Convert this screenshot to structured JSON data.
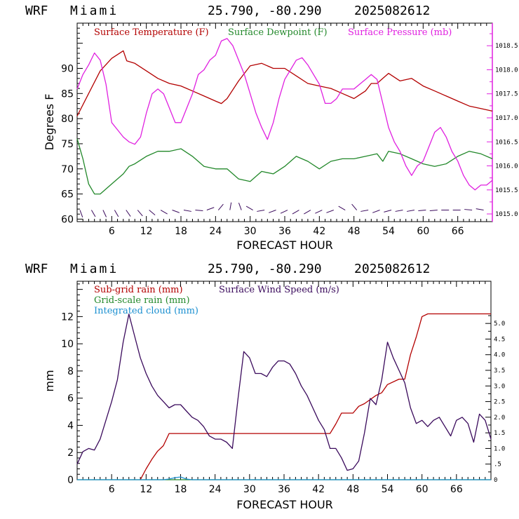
{
  "chart_data": [
    {
      "type": "line",
      "header": {
        "model": "WRF",
        "location": "Miami",
        "coords": "25.790, -80.290",
        "run": "2025082612"
      },
      "xlabel": "FORECAST HOUR",
      "ylabel": "Degrees F",
      "xlim": [
        0,
        72
      ],
      "ylim": [
        59.5,
        99
      ],
      "xticks": [
        6,
        12,
        18,
        24,
        30,
        36,
        42,
        48,
        54,
        60,
        66
      ],
      "yticks": [
        60,
        65,
        70,
        75,
        80,
        85,
        90
      ],
      "right_axis": {
        "ylim": [
          1014.84,
          1018.97
        ],
        "ticks": [
          "1015.0",
          "1015.5",
          "1016.0",
          "1016.5",
          "1017.0",
          "1017.5",
          "1018.0",
          "1018.5"
        ]
      },
      "series": [
        {
          "name": "Surface Temperature (F)",
          "color": "#b30000",
          "axis": "left",
          "x": [
            0,
            2,
            4,
            6,
            8,
            8.6,
            10,
            12,
            14,
            16,
            18,
            20,
            22,
            24,
            25,
            26,
            28,
            30,
            32,
            34,
            36,
            38,
            40,
            42,
            44,
            46,
            48,
            50,
            51,
            52,
            53,
            54,
            56,
            58,
            60,
            62,
            64,
            66,
            68,
            70,
            72
          ],
          "y": [
            80.5,
            85,
            89.5,
            92,
            93.5,
            91.5,
            91,
            89.5,
            88,
            87,
            86.5,
            85.5,
            84.5,
            83.5,
            83,
            84,
            87.5,
            90.5,
            91,
            90,
            90,
            88.5,
            87,
            86.5,
            86,
            85,
            84,
            85.5,
            87,
            87,
            88,
            89,
            87.5,
            88,
            86.5,
            85.5,
            84.5,
            83.5,
            82.5,
            82,
            81.5
          ]
        },
        {
          "name": "Surface Dewpoint (F)",
          "color": "#22882a",
          "axis": "left",
          "x": [
            0,
            1,
            2,
            3,
            4,
            6,
            8,
            9,
            10,
            12,
            14,
            16,
            18,
            20,
            22,
            24,
            26,
            28,
            30,
            32,
            34,
            36,
            38,
            40,
            42,
            44,
            46,
            48,
            50,
            52,
            53,
            54,
            56,
            58,
            60,
            62,
            64,
            66,
            68,
            70,
            72
          ],
          "y": [
            76,
            72,
            67,
            65,
            65,
            67,
            69,
            70.5,
            71,
            72.5,
            73.5,
            73.5,
            74,
            72.5,
            70.5,
            70,
            70,
            68,
            67.5,
            69.5,
            69,
            70.5,
            72.5,
            71.5,
            70,
            71.5,
            72,
            72,
            72.5,
            73,
            71.5,
            73.5,
            73,
            72,
            71,
            70.5,
            71,
            72.5,
            73.5,
            73,
            72
          ]
        },
        {
          "name": "Surface Pressure (mb)",
          "color": "#e020e0",
          "axis": "right",
          "x": [
            0,
            1,
            2,
            3,
            4,
            5,
            6,
            7,
            8,
            9,
            10,
            11,
            12,
            13,
            14,
            15,
            16,
            17,
            18,
            19,
            20,
            21,
            22,
            23,
            24,
            25,
            26,
            27,
            28,
            29,
            30,
            31,
            32,
            33,
            34,
            35,
            36,
            37,
            38,
            39,
            40,
            41,
            42,
            43,
            44,
            45,
            46,
            47,
            48,
            49,
            50,
            51,
            52,
            53,
            54,
            55,
            56,
            57,
            58,
            59,
            60,
            61,
            62,
            63,
            64,
            65,
            66,
            67,
            68,
            69,
            70,
            71,
            72
          ],
          "y": [
            1017.6,
            1017.9,
            1018.1,
            1018.35,
            1018.2,
            1017.7,
            1016.9,
            1016.75,
            1016.6,
            1016.5,
            1016.45,
            1016.6,
            1017.1,
            1017.5,
            1017.6,
            1017.5,
            1017.2,
            1016.9,
            1016.9,
            1017.2,
            1017.5,
            1017.9,
            1018.0,
            1018.2,
            1018.3,
            1018.6,
            1018.65,
            1018.5,
            1018.2,
            1017.9,
            1017.5,
            1017.1,
            1016.8,
            1016.55,
            1016.9,
            1017.4,
            1017.8,
            1018.0,
            1018.2,
            1018.25,
            1018.1,
            1017.9,
            1017.7,
            1017.3,
            1017.3,
            1017.4,
            1017.6,
            1017.6,
            1017.6,
            1017.7,
            1017.8,
            1017.9,
            1017.8,
            1017.3,
            1016.8,
            1016.5,
            1016.3,
            1016.0,
            1015.8,
            1016.0,
            1016.1,
            1016.4,
            1016.7,
            1016.8,
            1016.6,
            1016.3,
            1016.1,
            1015.8,
            1015.6,
            1015.5,
            1015.6,
            1015.6,
            1015.7
          ]
        }
      ],
      "wind_barbs": {
        "hours": [
          0,
          2,
          4,
          6,
          8,
          10,
          12,
          14,
          16,
          18,
          20,
          22,
          24,
          26,
          28,
          30,
          32,
          34,
          36,
          38,
          40,
          42,
          44,
          46,
          48,
          50,
          52,
          54,
          56,
          58,
          60,
          62,
          64,
          66,
          68,
          70
        ],
        "angles": [
          160,
          150,
          155,
          150,
          145,
          140,
          130,
          120,
          110,
          100,
          95,
          70,
          40,
          10,
          -20,
          -60,
          -100,
          -110,
          -115,
          -120,
          -120,
          -115,
          -110,
          -60,
          -40,
          -100,
          -110,
          -105,
          -100,
          -100,
          -95,
          -95,
          -90,
          -90,
          -85,
          -80
        ]
      }
    },
    {
      "type": "line",
      "header": {
        "model": "WRF",
        "location": "Miami",
        "coords": "25.790, -80.290",
        "run": "2025082612"
      },
      "xlabel": "FORECAST HOUR",
      "ylabel": "mm",
      "xlim": [
        0,
        72
      ],
      "ylim": [
        0,
        14.6
      ],
      "xticks": [
        6,
        12,
        18,
        24,
        30,
        36,
        42,
        48,
        54,
        60,
        66
      ],
      "yticks": [
        0,
        2,
        4,
        6,
        8,
        10,
        12
      ],
      "right_axis": {
        "ylim": [
          0,
          6.35
        ],
        "ticks": [
          "0",
          ".5",
          "1.0",
          "1.5",
          "2.0",
          "2.5",
          "3.0",
          "3.5",
          "4.0",
          "4.5",
          "5.0"
        ]
      },
      "series": [
        {
          "name": "Sub-grid rain (mm)",
          "color": "#b30000",
          "axis": "left",
          "x": [
            11,
            12,
            13,
            14,
            15,
            16,
            44,
            45,
            46,
            47,
            48,
            49,
            50,
            51,
            52,
            53,
            54,
            56,
            57,
            58,
            59,
            60,
            61,
            62,
            72
          ],
          "y": [
            0,
            0.8,
            1.5,
            2.1,
            2.5,
            3.4,
            3.4,
            4.1,
            4.9,
            4.9,
            4.9,
            5.4,
            5.6,
            5.9,
            6.2,
            6.4,
            7.0,
            7.4,
            7.4,
            9.2,
            10.5,
            12.0,
            12.2,
            12.2,
            12.2
          ]
        },
        {
          "name": "Grid-scale rain (mm)",
          "color": "#22882a",
          "axis": "left",
          "x": [
            0,
            72
          ],
          "y": [
            0,
            0
          ]
        },
        {
          "name": "Integrated cloud (mm)",
          "color": "#1a8fd0",
          "axis": "left",
          "x": [
            0,
            15,
            16,
            17,
            18,
            19,
            20,
            72
          ],
          "y": [
            0,
            0,
            0.05,
            0.15,
            0.2,
            0.05,
            0,
            0
          ]
        },
        {
          "name": "Surface Wind Speed (m/s)",
          "color": "#3a0a5c",
          "axis": "right",
          "x": [
            0,
            1,
            2,
            3,
            4,
            5,
            6,
            7,
            8,
            9,
            10,
            11,
            12,
            13,
            14,
            15,
            16,
            17,
            18,
            19,
            20,
            21,
            22,
            23,
            24,
            25,
            26,
            27,
            28,
            29,
            30,
            31,
            32,
            33,
            34,
            35,
            36,
            37,
            38,
            39,
            40,
            41,
            42,
            43,
            44,
            45,
            46,
            47,
            48,
            49,
            50,
            51,
            52,
            53,
            54,
            55,
            56,
            57,
            58,
            59,
            60,
            61,
            62,
            63,
            64,
            65,
            66,
            67,
            68,
            69,
            70,
            71,
            72
          ],
          "y": [
            0.5,
            0.9,
            1.0,
            0.95,
            1.3,
            1.9,
            2.5,
            3.2,
            4.4,
            5.3,
            4.6,
            3.9,
            3.4,
            3.0,
            2.7,
            2.5,
            2.3,
            2.4,
            2.4,
            2.2,
            2.0,
            1.9,
            1.7,
            1.4,
            1.3,
            1.3,
            1.2,
            1.0,
            2.6,
            4.1,
            3.9,
            3.4,
            3.4,
            3.3,
            3.6,
            3.8,
            3.8,
            3.7,
            3.4,
            3.0,
            2.7,
            2.3,
            1.9,
            1.6,
            1.0,
            1.0,
            0.7,
            0.3,
            0.35,
            0.6,
            1.5,
            2.6,
            2.4,
            3.2,
            4.4,
            3.9,
            3.5,
            3.1,
            2.3,
            1.8,
            1.9,
            1.7,
            1.9,
            2.0,
            1.7,
            1.4,
            1.9,
            2.0,
            1.8,
            1.2,
            2.1,
            1.9,
            1.3
          ]
        }
      ]
    }
  ]
}
